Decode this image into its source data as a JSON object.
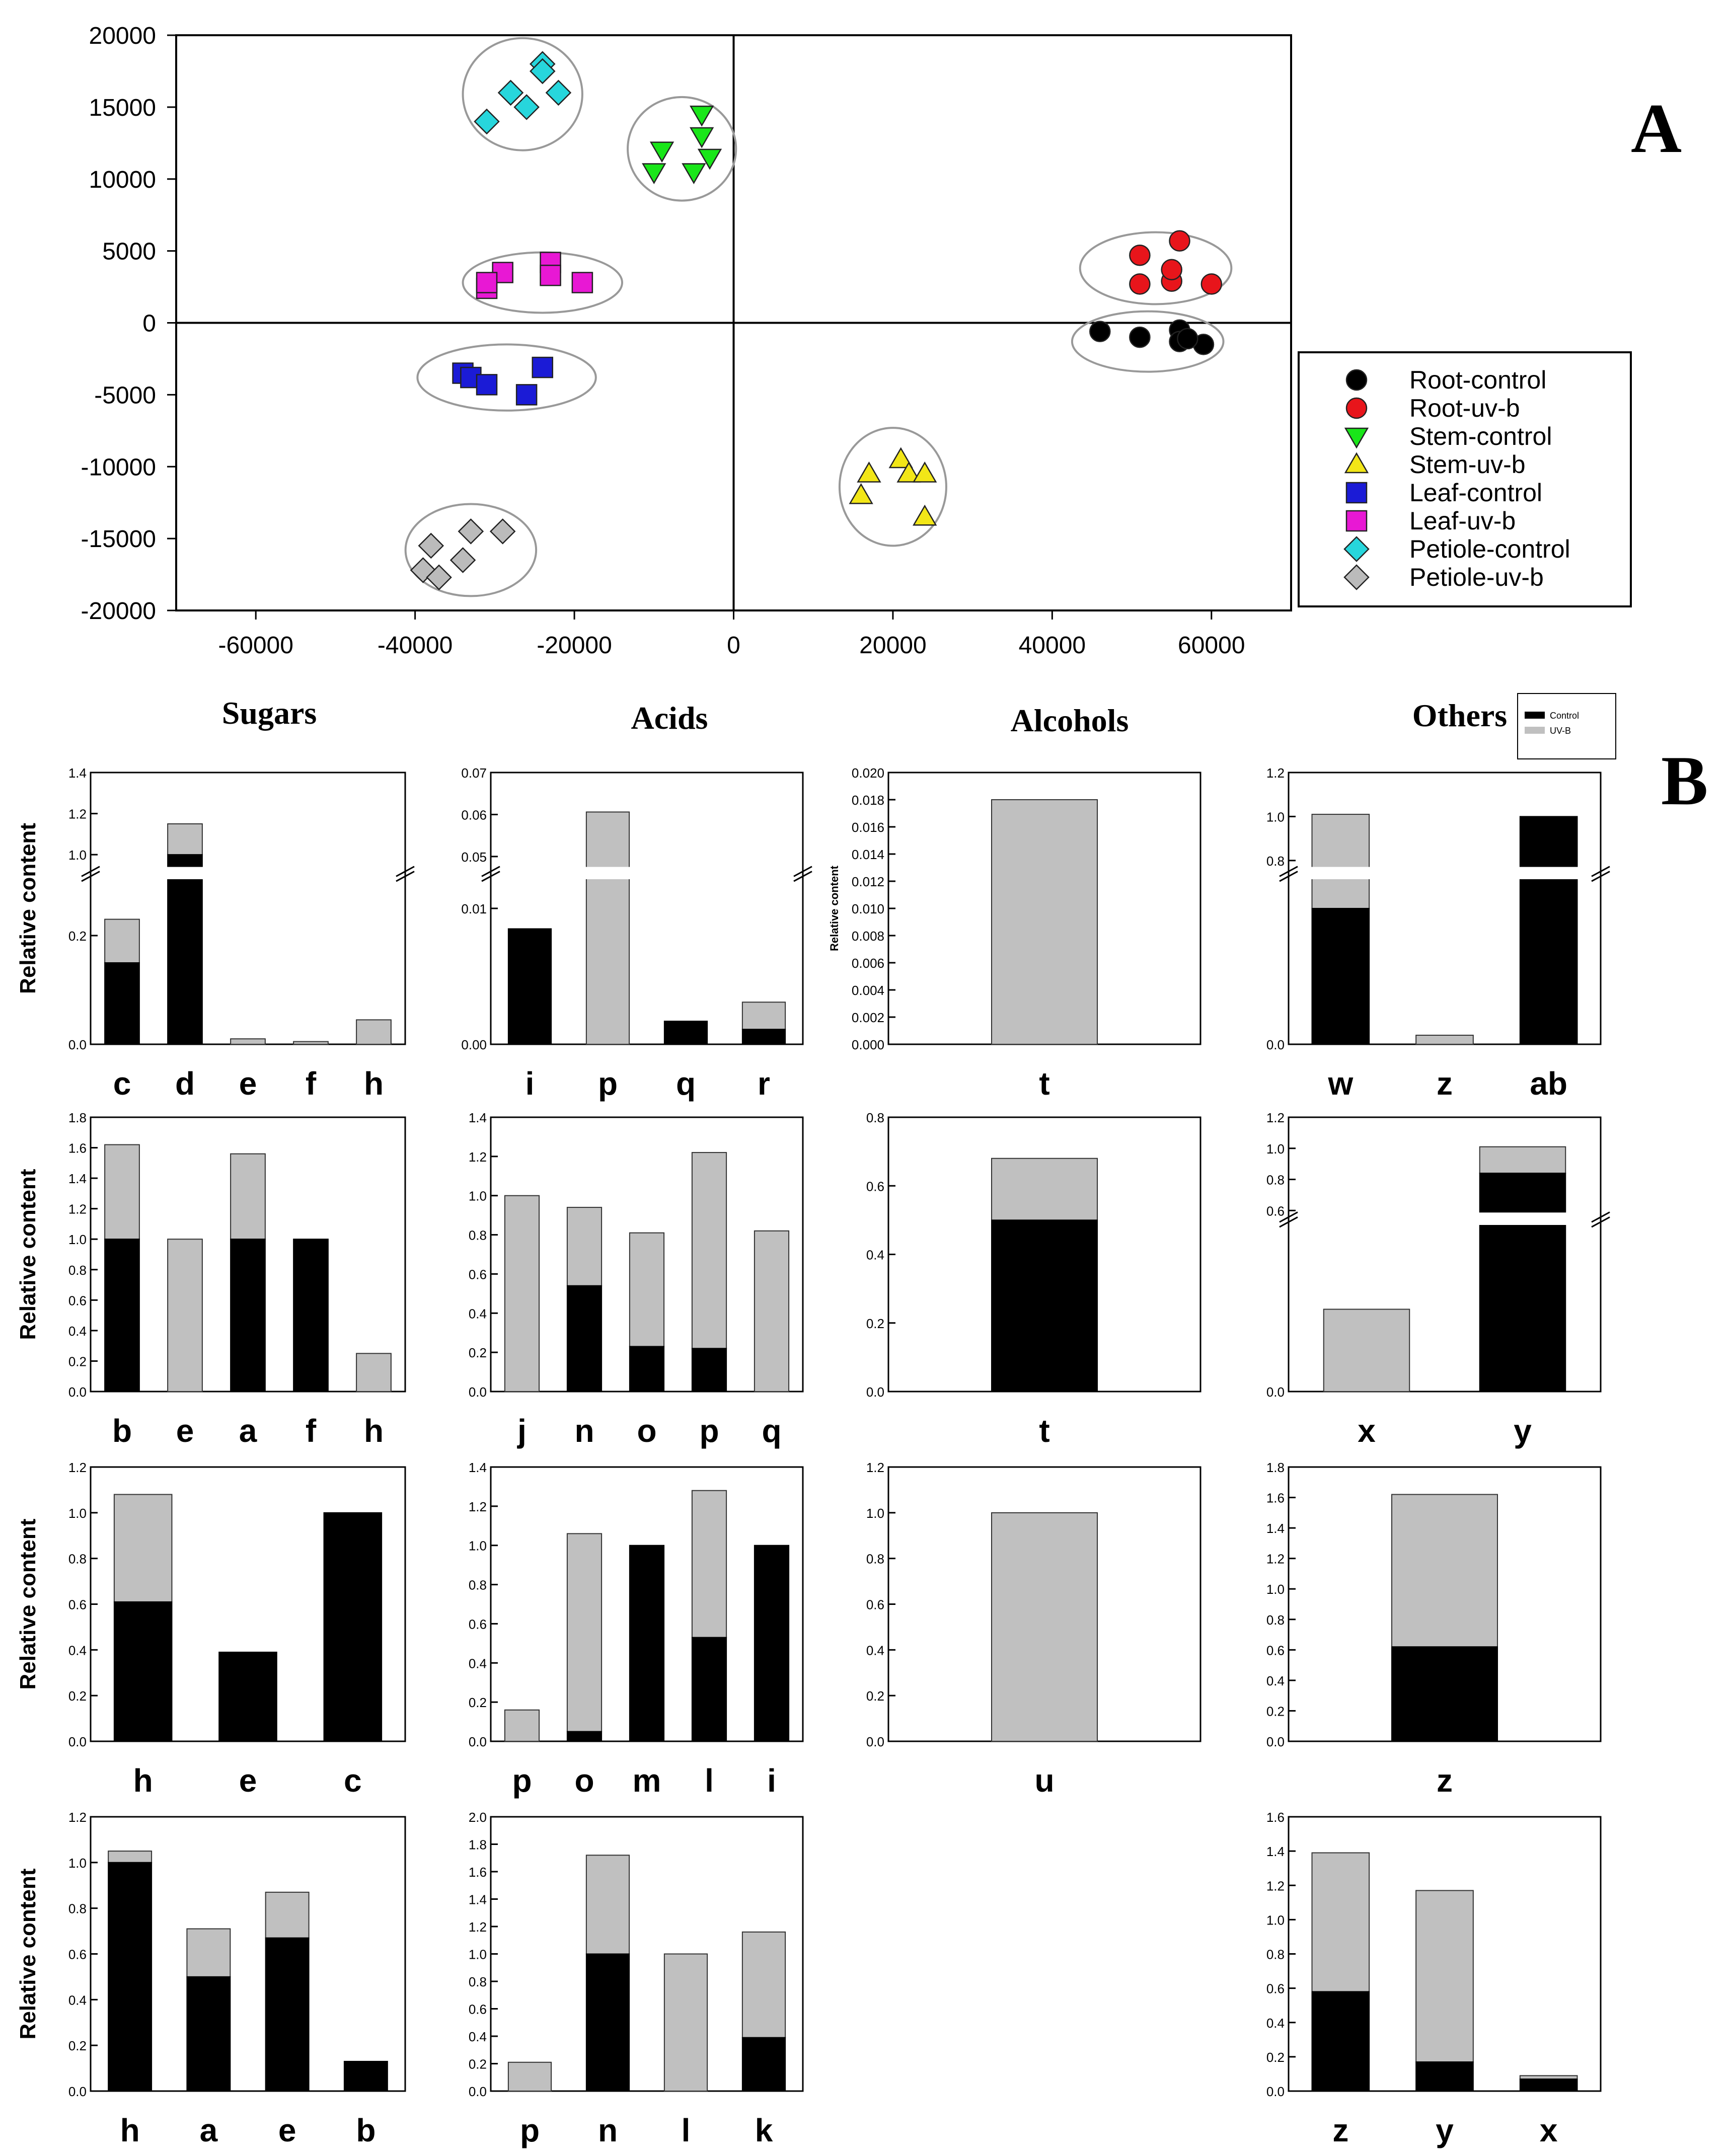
{
  "panel_labels": {
    "a": "A",
    "b": "B"
  },
  "column_titles": [
    "Sugars",
    "Acids",
    "Alcohols",
    "Others"
  ],
  "ylabel": "Relative content",
  "colors": {
    "control": "#000000",
    "uvb": "#c0c0c0"
  },
  "chart_data": [
    {
      "id": "pca",
      "type": "scatter",
      "xlim": [
        -70000,
        70000
      ],
      "ylim": [
        -20000,
        20000
      ],
      "xticks": [
        "-60000",
        "-40000",
        "-20000",
        "0",
        "20000",
        "40000",
        "60000"
      ],
      "xtick_values": [
        -60000,
        -40000,
        -20000,
        0,
        20000,
        40000,
        60000
      ],
      "yticks": [
        "20000",
        "15000",
        "10000",
        "5000",
        "0",
        "-5000",
        "-10000",
        "-15000",
        "-20000"
      ],
      "ytick_values": [
        20000,
        15000,
        10000,
        5000,
        0,
        -5000,
        -10000,
        -15000,
        -20000
      ],
      "series": [
        {
          "name": "Root-control",
          "marker": "circle",
          "color": "#000000",
          "points": [
            [
              46000,
              -600
            ],
            [
              51000,
              -1000
            ],
            [
              56000,
              -500
            ],
            [
              56000,
              -1300
            ],
            [
              59000,
              -1500
            ],
            [
              57000,
              -1100
            ]
          ]
        },
        {
          "name": "Root-uv-b",
          "marker": "circle",
          "color": "#e8151b",
          "points": [
            [
              51000,
              4700
            ],
            [
              56000,
              5700
            ],
            [
              51000,
              2700
            ],
            [
              55000,
              2900
            ],
            [
              55000,
              3700
            ],
            [
              60000,
              2700
            ]
          ]
        },
        {
          "name": "Stem-control",
          "marker": "triangle-down",
          "color": "#19e619",
          "points": [
            [
              -4000,
              14500
            ],
            [
              -4000,
              13000
            ],
            [
              -9000,
              12000
            ],
            [
              -3000,
              11500
            ],
            [
              -10000,
              10500
            ],
            [
              -5000,
              10500
            ]
          ]
        },
        {
          "name": "Stem-uv-b",
          "marker": "triangle-up",
          "color": "#f2e617",
          "points": [
            [
              21000,
              -9500
            ],
            [
              17000,
              -10500
            ],
            [
              22000,
              -10500
            ],
            [
              24000,
              -10500
            ],
            [
              16000,
              -12000
            ],
            [
              24000,
              -13500
            ]
          ]
        },
        {
          "name": "Leaf-control",
          "marker": "square",
          "color": "#1b1bd6",
          "points": [
            [
              -34000,
              -3500
            ],
            [
              -33000,
              -3800
            ],
            [
              -31000,
              -4300
            ],
            [
              -24000,
              -3100
            ],
            [
              -26000,
              -5000
            ]
          ]
        },
        {
          "name": "Leaf-uv-b",
          "marker": "square",
          "color": "#e818d4",
          "points": [
            [
              -31000,
              2400
            ],
            [
              -29000,
              3500
            ],
            [
              -23000,
              4200
            ],
            [
              -23000,
              3300
            ],
            [
              -19000,
              2800
            ],
            [
              -31000,
              2800
            ]
          ]
        },
        {
          "name": "Petiole-control",
          "marker": "diamond",
          "color": "#27d6dc",
          "points": [
            [
              -24000,
              18000
            ],
            [
              -24000,
              17500
            ],
            [
              -28000,
              16000
            ],
            [
              -22000,
              16000
            ],
            [
              -26000,
              15000
            ],
            [
              -31000,
              14000
            ]
          ]
        },
        {
          "name": "Petiole-uv-b",
          "marker": "diamond",
          "color": "#bbbbbb",
          "points": [
            [
              -33000,
              -14500
            ],
            [
              -29000,
              -14500
            ],
            [
              -38000,
              -15500
            ],
            [
              -34000,
              -16500
            ],
            [
              -39000,
              -17200
            ],
            [
              -37000,
              -17700
            ]
          ]
        }
      ],
      "legend": [
        "Root-control",
        "Root-uv-b",
        "Stem-control",
        "Stem-uv-b",
        "Leaf-control",
        "Leaf-uv-b",
        "Petiole-control",
        "Petiole-uv-b"
      ],
      "legend_position": "right",
      "clusters": [
        {
          "center": [
            -26500,
            15900
          ],
          "radius": [
            7500,
            3900
          ]
        },
        {
          "center": [
            -6500,
            12100
          ],
          "radius": [
            6800,
            3600
          ]
        },
        {
          "center": [
            -24000,
            2800
          ],
          "radius": [
            10000,
            2100
          ]
        },
        {
          "center": [
            -28500,
            -3800
          ],
          "radius": [
            11200,
            2300
          ]
        },
        {
          "center": [
            -33000,
            -15800
          ],
          "radius": [
            8200,
            3200
          ]
        },
        {
          "center": [
            20000,
            -11400
          ],
          "radius": [
            6700,
            4100
          ]
        },
        {
          "center": [
            53000,
            3800
          ],
          "radius": [
            9500,
            2500
          ]
        },
        {
          "center": [
            52000,
            -1300
          ],
          "radius": [
            9500,
            2100
          ]
        }
      ]
    },
    {
      "id": "root-sugars",
      "type": "stacked-bar",
      "categories": [
        "c",
        "d",
        "e",
        "f",
        "h"
      ],
      "control": [
        0.15,
        1.0,
        0.0,
        0.0,
        0.0
      ],
      "uvb": [
        0.08,
        0.15,
        0.01,
        0.005,
        0.045
      ],
      "ylim": [
        0,
        1.4
      ],
      "yticks": [
        "0.0",
        "0.2",
        "1.0",
        "1.2",
        "1.4"
      ],
      "ytick_values": [
        0,
        0.2,
        1.0,
        1.2,
        1.4
      ],
      "axis_break": {
        "lower_top": 0.3,
        "upper_bottom": 0.95
      },
      "ylabel": "Relative content"
    },
    {
      "id": "root-acids",
      "type": "stacked-bar",
      "categories": [
        "i",
        "p",
        "q",
        "r"
      ],
      "control": [
        0.0085,
        0.0,
        0.0017,
        0.0011
      ],
      "uvb": [
        0.0,
        0.0606,
        0.0,
        0.002
      ],
      "ylim": [
        0,
        0.07
      ],
      "yticks": [
        "0.00",
        "0.01",
        "0.05",
        "0.06",
        "0.07"
      ],
      "ytick_values": [
        0,
        0.01,
        0.05,
        0.06,
        0.07
      ],
      "axis_break": {
        "lower_top": 0.012,
        "upper_bottom": 0.048
      }
    },
    {
      "id": "root-alcohols",
      "type": "stacked-bar",
      "categories": [
        "t"
      ],
      "control": [
        0.0
      ],
      "uvb": [
        0.018
      ],
      "ylim": [
        0,
        0.02
      ],
      "yticks": [
        "0.000",
        "0.002",
        "0.004",
        "0.006",
        "0.008",
        "0.010",
        "0.012",
        "0.014",
        "0.016",
        "0.018",
        "0.020"
      ],
      "ytick_values": [
        0,
        0.002,
        0.004,
        0.006,
        0.008,
        0.01,
        0.012,
        0.014,
        0.016,
        0.018,
        0.02
      ],
      "ylabel": "Relative content"
    },
    {
      "id": "root-others",
      "type": "stacked-bar",
      "categories": [
        "w",
        "z",
        "ab"
      ],
      "control": [
        0.6,
        0.0,
        1.0
      ],
      "uvb": [
        0.41,
        0.04,
        0.0
      ],
      "ylim": [
        0,
        1.2
      ],
      "yticks": [
        "0.0",
        "0.8",
        "1.0",
        "1.2"
      ],
      "ytick_values": [
        0,
        0.8,
        1.0,
        1.2
      ],
      "axis_break": {
        "lower_top": 0.72,
        "upper_bottom": 0.78
      },
      "legend": [
        "Control",
        "UV-B"
      ],
      "legend_position": "top-right"
    },
    {
      "id": "stem-sugars",
      "type": "stacked-bar",
      "categories": [
        "b",
        "e",
        "a",
        "f",
        "h"
      ],
      "control": [
        1.0,
        0.0,
        1.0,
        1.0,
        0.0
      ],
      "uvb": [
        0.62,
        1.0,
        0.56,
        0.0,
        0.25
      ],
      "ylim": [
        0,
        1.8
      ],
      "yticks": [
        "0.0",
        "0.2",
        "0.4",
        "0.6",
        "0.8",
        "1.0",
        "1.2",
        "1.4",
        "1.6",
        "1.8"
      ],
      "ytick_values": [
        0,
        0.2,
        0.4,
        0.6,
        0.8,
        1.0,
        1.2,
        1.4,
        1.6,
        1.8
      ],
      "ylabel": "Relative content"
    },
    {
      "id": "stem-acids",
      "type": "stacked-bar",
      "categories": [
        "j",
        "n",
        "o",
        "p",
        "q"
      ],
      "control": [
        0.0,
        0.54,
        0.23,
        0.22,
        0.0
      ],
      "uvb": [
        1.0,
        0.4,
        0.58,
        1.0,
        0.82
      ],
      "ylim": [
        0,
        1.4
      ],
      "yticks": [
        "0.0",
        "0.2",
        "0.4",
        "0.6",
        "0.8",
        "1.0",
        "1.2",
        "1.4"
      ],
      "ytick_values": [
        0,
        0.2,
        0.4,
        0.6,
        0.8,
        1.0,
        1.2,
        1.4
      ]
    },
    {
      "id": "stem-alcohols",
      "type": "stacked-bar",
      "categories": [
        "t"
      ],
      "control": [
        0.5
      ],
      "uvb": [
        0.18
      ],
      "ylim": [
        0,
        0.8
      ],
      "yticks": [
        "0.0",
        "0.2",
        "0.4",
        "0.6",
        "0.8"
      ],
      "ytick_values": [
        0,
        0.2,
        0.4,
        0.6,
        0.8
      ]
    },
    {
      "id": "stem-others",
      "type": "stacked-bar",
      "categories": [
        "x",
        "y"
      ],
      "control": [
        0.0,
        0.84
      ],
      "uvb": [
        0.28,
        0.17
      ],
      "ylim": [
        0,
        1.2
      ],
      "yticks": [
        "0.0",
        "0.6",
        "0.8",
        "1.0",
        "1.2"
      ],
      "ytick_values": [
        0,
        0.6,
        0.8,
        1.0,
        1.2
      ],
      "axis_break": {
        "lower_top": 0.56,
        "upper_bottom": 0.6
      }
    },
    {
      "id": "leaf-sugars",
      "type": "stacked-bar",
      "categories": [
        "h",
        "e",
        "c"
      ],
      "control": [
        0.61,
        0.39,
        1.0
      ],
      "uvb": [
        0.47,
        0.0,
        0.0
      ],
      "ylim": [
        0,
        1.2
      ],
      "yticks": [
        "0.0",
        "0.2",
        "0.4",
        "0.6",
        "0.8",
        "1.0",
        "1.2"
      ],
      "ytick_values": [
        0,
        0.2,
        0.4,
        0.6,
        0.8,
        1.0,
        1.2
      ],
      "ylabel": "Relative content"
    },
    {
      "id": "leaf-acids",
      "type": "stacked-bar",
      "categories": [
        "p",
        "o",
        "m",
        "l",
        "i"
      ],
      "control": [
        0.0,
        0.05,
        1.0,
        0.53,
        1.0
      ],
      "uvb": [
        0.16,
        1.01,
        0.0,
        0.75,
        0.0
      ],
      "ylim": [
        0,
        1.4
      ],
      "yticks": [
        "0.0",
        "0.2",
        "0.4",
        "0.6",
        "0.8",
        "1.0",
        "1.2",
        "1.4"
      ],
      "ytick_values": [
        0,
        0.2,
        0.4,
        0.6,
        0.8,
        1.0,
        1.2,
        1.4
      ]
    },
    {
      "id": "leaf-alcohols",
      "type": "stacked-bar",
      "categories": [
        "u"
      ],
      "control": [
        0.0
      ],
      "uvb": [
        1.0
      ],
      "ylim": [
        0,
        1.2
      ],
      "yticks": [
        "0.0",
        "0.2",
        "0.4",
        "0.6",
        "0.8",
        "1.0",
        "1.2"
      ],
      "ytick_values": [
        0,
        0.2,
        0.4,
        0.6,
        0.8,
        1.0,
        1.2
      ]
    },
    {
      "id": "leaf-others",
      "type": "stacked-bar",
      "categories": [
        "z"
      ],
      "control": [
        0.62
      ],
      "uvb": [
        1.0
      ],
      "ylim": [
        0,
        1.8
      ],
      "yticks": [
        "0.0",
        "0.2",
        "0.4",
        "0.6",
        "0.8",
        "1.0",
        "1.2",
        "1.4",
        "1.6",
        "1.8"
      ],
      "ytick_values": [
        0,
        0.2,
        0.4,
        0.6,
        0.8,
        1.0,
        1.2,
        1.4,
        1.6,
        1.8
      ]
    },
    {
      "id": "petiole-sugars",
      "type": "stacked-bar",
      "categories": [
        "h",
        "a",
        "e",
        "b"
      ],
      "control": [
        1.0,
        0.5,
        0.67,
        0.13
      ],
      "uvb": [
        0.05,
        0.21,
        0.2,
        0.0
      ],
      "ylim": [
        0,
        1.2
      ],
      "yticks": [
        "0.0",
        "0.2",
        "0.4",
        "0.6",
        "0.8",
        "1.0",
        "1.2"
      ],
      "ytick_values": [
        0,
        0.2,
        0.4,
        0.6,
        0.8,
        1.0,
        1.2
      ],
      "ylabel": "Relative content"
    },
    {
      "id": "petiole-acids",
      "type": "stacked-bar",
      "categories": [
        "p",
        "n",
        "l",
        "k"
      ],
      "control": [
        0.0,
        1.0,
        0.0,
        0.39
      ],
      "uvb": [
        0.21,
        0.72,
        1.0,
        0.77
      ],
      "ylim": [
        0,
        2.0
      ],
      "yticks": [
        "0.0",
        "0.2",
        "0.4",
        "0.6",
        "0.8",
        "1.0",
        "1.2",
        "1.4",
        "1.6",
        "1.8",
        "2.0"
      ],
      "ytick_values": [
        0,
        0.2,
        0.4,
        0.6,
        0.8,
        1.0,
        1.2,
        1.4,
        1.6,
        1.8,
        2.0
      ]
    },
    {
      "id": "petiole-others",
      "type": "stacked-bar",
      "categories": [
        "z",
        "y",
        "x"
      ],
      "control": [
        0.58,
        0.17,
        0.07
      ],
      "uvb": [
        0.81,
        1.0,
        0.02
      ],
      "ylim": [
        0,
        1.6
      ],
      "yticks": [
        "0.0",
        "0.2",
        "0.4",
        "0.6",
        "0.8",
        "1.0",
        "1.2",
        "1.4",
        "1.6"
      ],
      "ytick_values": [
        0,
        0.2,
        0.4,
        0.6,
        0.8,
        1.0,
        1.2,
        1.4,
        1.6
      ]
    }
  ]
}
